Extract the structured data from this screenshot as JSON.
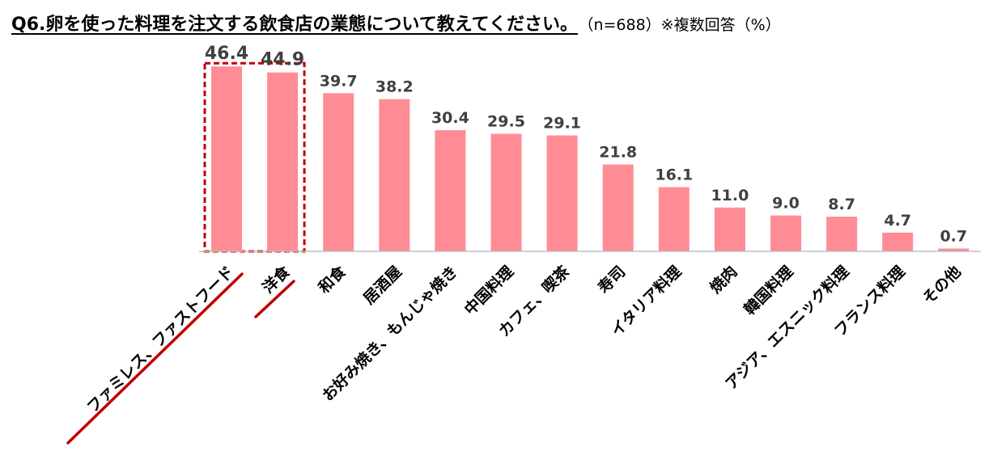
{
  "title": "Q6.卵を使った料理を注文する飲食店の業態について教えてください。",
  "subtitle": "（n=688）※複数回答（%）",
  "colors": {
    "bar": "#ff8c94",
    "highlight": "#c00000",
    "text": "#404040",
    "axis": "#bfbfbf"
  },
  "chart_data": {
    "type": "bar",
    "title": "Q6.卵を使った料理を注文する飲食店の業態について教えてください。",
    "xlabel": "",
    "ylabel": "",
    "ylim": [
      0,
      50
    ],
    "grid": false,
    "legend": "none",
    "unit": "%",
    "categories": [
      "ファミレス、ファストフード",
      "洋食",
      "和食",
      "居酒屋",
      "お好み焼き、もんじゃ焼き",
      "中国料理",
      "カフェ、喫茶",
      "寿司",
      "イタリア料理",
      "焼肉",
      "韓国料理",
      "アジア、エスニック料理",
      "フランス料理",
      "その他"
    ],
    "values": [
      46.4,
      44.9,
      39.7,
      38.2,
      30.4,
      29.5,
      29.1,
      21.8,
      16.1,
      11.0,
      9.0,
      8.7,
      4.7,
      0.7
    ],
    "value_labels": [
      "46.4",
      "44.9",
      "39.7",
      "38.2",
      "30.4",
      "29.5",
      "29.1",
      "21.8",
      "16.1",
      "11.0",
      "9.0",
      "8.7",
      "4.7",
      "0.7"
    ],
    "highlighted": [
      "ファミレス、ファストフード",
      "洋食"
    ]
  }
}
